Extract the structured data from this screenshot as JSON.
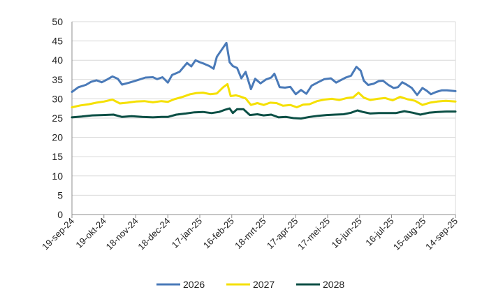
{
  "chart_data": {
    "type": "line",
    "title": "",
    "xlabel": "",
    "ylabel": "",
    "ylim": [
      0,
      50
    ],
    "yticks": [
      0,
      5,
      10,
      15,
      20,
      25,
      30,
      35,
      40,
      45,
      50
    ],
    "x_start": "2024-09-19",
    "x_end": "2025-09-14",
    "x_ticks": [
      {
        "date": "2024-09-19",
        "label": "19-sep-24"
      },
      {
        "date": "2024-10-19",
        "label": "19-okt-24"
      },
      {
        "date": "2024-11-18",
        "label": "18-nov-24"
      },
      {
        "date": "2024-12-18",
        "label": "18-dec-24"
      },
      {
        "date": "2025-01-17",
        "label": "17-jan-25"
      },
      {
        "date": "2025-02-16",
        "label": "16-feb-25"
      },
      {
        "date": "2025-03-18",
        "label": "18-mrt-25"
      },
      {
        "date": "2025-04-17",
        "label": "17-apr-25"
      },
      {
        "date": "2025-05-17",
        "label": "17-mei-25"
      },
      {
        "date": "2025-06-16",
        "label": "16-jun-25"
      },
      {
        "date": "2025-07-16",
        "label": "16-jul-25"
      },
      {
        "date": "2025-08-15",
        "label": "15-aug-25"
      },
      {
        "date": "2025-09-14",
        "label": "14-sep-25"
      }
    ],
    "grid": true,
    "legend_position": "bottom",
    "series": [
      {
        "name": "2026",
        "color": "#4a7ab8",
        "points": [
          [
            "2024-09-19",
            31.8
          ],
          [
            "2024-09-25",
            33.0
          ],
          [
            "2024-10-02",
            33.6
          ],
          [
            "2024-10-07",
            34.4
          ],
          [
            "2024-10-12",
            34.8
          ],
          [
            "2024-10-17",
            34.3
          ],
          [
            "2024-10-22",
            35.0
          ],
          [
            "2024-10-27",
            35.8
          ],
          [
            "2024-11-01",
            35.2
          ],
          [
            "2024-11-05",
            33.7
          ],
          [
            "2024-11-12",
            34.2
          ],
          [
            "2024-11-20",
            34.9
          ],
          [
            "2024-11-27",
            35.5
          ],
          [
            "2024-12-04",
            35.6
          ],
          [
            "2024-12-08",
            35.1
          ],
          [
            "2024-12-13",
            35.6
          ],
          [
            "2024-12-18",
            34.2
          ],
          [
            "2024-12-22",
            36.2
          ],
          [
            "2024-12-29",
            37.0
          ],
          [
            "2025-01-05",
            39.3
          ],
          [
            "2025-01-09",
            38.4
          ],
          [
            "2025-01-13",
            40.0
          ],
          [
            "2025-01-17",
            39.5
          ],
          [
            "2025-01-21",
            39.1
          ],
          [
            "2025-01-26",
            38.5
          ],
          [
            "2025-01-30",
            37.8
          ],
          [
            "2025-02-02",
            40.9
          ],
          [
            "2025-02-07",
            42.9
          ],
          [
            "2025-02-11",
            44.5
          ],
          [
            "2025-02-14",
            39.5
          ],
          [
            "2025-02-17",
            38.5
          ],
          [
            "2025-02-21",
            38.0
          ],
          [
            "2025-02-25",
            35.3
          ],
          [
            "2025-03-01",
            37.0
          ],
          [
            "2025-03-06",
            32.5
          ],
          [
            "2025-03-10",
            35.2
          ],
          [
            "2025-03-15",
            34.0
          ],
          [
            "2025-03-20",
            35.0
          ],
          [
            "2025-03-25",
            35.5
          ],
          [
            "2025-03-28",
            36.5
          ],
          [
            "2025-04-02",
            33.0
          ],
          [
            "2025-04-07",
            32.9
          ],
          [
            "2025-04-12",
            33.1
          ],
          [
            "2025-04-17",
            31.2
          ],
          [
            "2025-04-22",
            32.3
          ],
          [
            "2025-04-27",
            31.3
          ],
          [
            "2025-05-02",
            33.4
          ],
          [
            "2025-05-08",
            34.3
          ],
          [
            "2025-05-14",
            35.1
          ],
          [
            "2025-05-20",
            35.3
          ],
          [
            "2025-05-25",
            34.2
          ],
          [
            "2025-05-29",
            34.8
          ],
          [
            "2025-06-03",
            35.5
          ],
          [
            "2025-06-08",
            36.0
          ],
          [
            "2025-06-13",
            38.3
          ],
          [
            "2025-06-17",
            37.3
          ],
          [
            "2025-06-20",
            34.7
          ],
          [
            "2025-06-24",
            33.6
          ],
          [
            "2025-06-29",
            33.9
          ],
          [
            "2025-07-04",
            34.6
          ],
          [
            "2025-07-08",
            34.7
          ],
          [
            "2025-07-13",
            33.6
          ],
          [
            "2025-07-18",
            32.8
          ],
          [
            "2025-07-22",
            33.0
          ],
          [
            "2025-07-26",
            34.3
          ],
          [
            "2025-07-30",
            33.7
          ],
          [
            "2025-08-04",
            32.8
          ],
          [
            "2025-08-09",
            31.0
          ],
          [
            "2025-08-14",
            32.8
          ],
          [
            "2025-08-18",
            32.1
          ],
          [
            "2025-08-22",
            31.2
          ],
          [
            "2025-08-27",
            31.8
          ],
          [
            "2025-09-01",
            32.2
          ],
          [
            "2025-09-06",
            32.2
          ],
          [
            "2025-09-14",
            32.0
          ]
        ]
      },
      {
        "name": "2027",
        "color": "#f5e000",
        "points": [
          [
            "2024-09-19",
            27.8
          ],
          [
            "2024-09-27",
            28.3
          ],
          [
            "2024-10-05",
            28.6
          ],
          [
            "2024-10-12",
            29.0
          ],
          [
            "2024-10-19",
            29.3
          ],
          [
            "2024-10-27",
            29.8
          ],
          [
            "2024-11-03",
            28.8
          ],
          [
            "2024-11-10",
            29.0
          ],
          [
            "2024-11-18",
            29.3
          ],
          [
            "2024-11-26",
            29.4
          ],
          [
            "2024-12-04",
            29.1
          ],
          [
            "2024-12-12",
            29.4
          ],
          [
            "2024-12-18",
            29.2
          ],
          [
            "2024-12-24",
            29.9
          ],
          [
            "2025-01-01",
            30.5
          ],
          [
            "2025-01-08",
            31.2
          ],
          [
            "2025-01-14",
            31.5
          ],
          [
            "2025-01-20",
            31.6
          ],
          [
            "2025-01-27",
            31.2
          ],
          [
            "2025-02-02",
            31.4
          ],
          [
            "2025-02-08",
            33.0
          ],
          [
            "2025-02-12",
            33.8
          ],
          [
            "2025-02-15",
            30.7
          ],
          [
            "2025-02-20",
            30.9
          ],
          [
            "2025-02-24",
            30.6
          ],
          [
            "2025-03-01",
            30.1
          ],
          [
            "2025-03-06",
            28.4
          ],
          [
            "2025-03-12",
            28.9
          ],
          [
            "2025-03-18",
            28.4
          ],
          [
            "2025-03-24",
            29.0
          ],
          [
            "2025-03-30",
            28.9
          ],
          [
            "2025-04-05",
            28.2
          ],
          [
            "2025-04-12",
            28.4
          ],
          [
            "2025-04-18",
            27.8
          ],
          [
            "2025-04-24",
            28.5
          ],
          [
            "2025-04-30",
            28.6
          ],
          [
            "2025-05-07",
            29.4
          ],
          [
            "2025-05-14",
            29.8
          ],
          [
            "2025-05-21",
            30.0
          ],
          [
            "2025-05-28",
            29.7
          ],
          [
            "2025-06-04",
            30.2
          ],
          [
            "2025-06-10",
            30.4
          ],
          [
            "2025-06-15",
            31.6
          ],
          [
            "2025-06-20",
            30.3
          ],
          [
            "2025-06-26",
            29.7
          ],
          [
            "2025-07-03",
            30.0
          ],
          [
            "2025-07-10",
            30.2
          ],
          [
            "2025-07-17",
            29.6
          ],
          [
            "2025-07-24",
            30.5
          ],
          [
            "2025-07-31",
            29.9
          ],
          [
            "2025-08-07",
            29.5
          ],
          [
            "2025-08-14",
            28.4
          ],
          [
            "2025-08-21",
            29.0
          ],
          [
            "2025-08-28",
            29.3
          ],
          [
            "2025-09-05",
            29.5
          ],
          [
            "2025-09-14",
            29.3
          ]
        ]
      },
      {
        "name": "2028",
        "color": "#0b4f45",
        "points": [
          [
            "2024-09-19",
            25.2
          ],
          [
            "2024-09-28",
            25.4
          ],
          [
            "2024-10-08",
            25.7
          ],
          [
            "2024-10-18",
            25.8
          ],
          [
            "2024-10-28",
            25.9
          ],
          [
            "2024-11-05",
            25.3
          ],
          [
            "2024-11-14",
            25.5
          ],
          [
            "2024-11-24",
            25.3
          ],
          [
            "2024-12-04",
            25.2
          ],
          [
            "2024-12-12",
            25.3
          ],
          [
            "2024-12-18",
            25.3
          ],
          [
            "2024-12-26",
            25.9
          ],
          [
            "2025-01-04",
            26.2
          ],
          [
            "2025-01-12",
            26.5
          ],
          [
            "2025-01-20",
            26.6
          ],
          [
            "2025-01-28",
            26.3
          ],
          [
            "2025-02-04",
            26.6
          ],
          [
            "2025-02-10",
            27.2
          ],
          [
            "2025-02-14",
            27.5
          ],
          [
            "2025-02-17",
            26.3
          ],
          [
            "2025-02-21",
            27.3
          ],
          [
            "2025-02-27",
            27.3
          ],
          [
            "2025-03-05",
            25.8
          ],
          [
            "2025-03-12",
            26.0
          ],
          [
            "2025-03-18",
            25.7
          ],
          [
            "2025-03-25",
            25.9
          ],
          [
            "2025-04-01",
            25.2
          ],
          [
            "2025-04-08",
            25.3
          ],
          [
            "2025-04-15",
            25.0
          ],
          [
            "2025-04-22",
            24.9
          ],
          [
            "2025-04-30",
            25.3
          ],
          [
            "2025-05-08",
            25.6
          ],
          [
            "2025-05-16",
            25.8
          ],
          [
            "2025-05-24",
            25.9
          ],
          [
            "2025-06-01",
            26.0
          ],
          [
            "2025-06-08",
            26.4
          ],
          [
            "2025-06-14",
            27.0
          ],
          [
            "2025-06-19",
            26.6
          ],
          [
            "2025-06-26",
            26.2
          ],
          [
            "2025-07-04",
            26.3
          ],
          [
            "2025-07-12",
            26.3
          ],
          [
            "2025-07-20",
            26.3
          ],
          [
            "2025-07-28",
            26.8
          ],
          [
            "2025-08-05",
            26.4
          ],
          [
            "2025-08-12",
            25.9
          ],
          [
            "2025-08-20",
            26.4
          ],
          [
            "2025-08-28",
            26.6
          ],
          [
            "2025-09-06",
            26.7
          ],
          [
            "2025-09-14",
            26.7
          ]
        ]
      }
    ]
  }
}
